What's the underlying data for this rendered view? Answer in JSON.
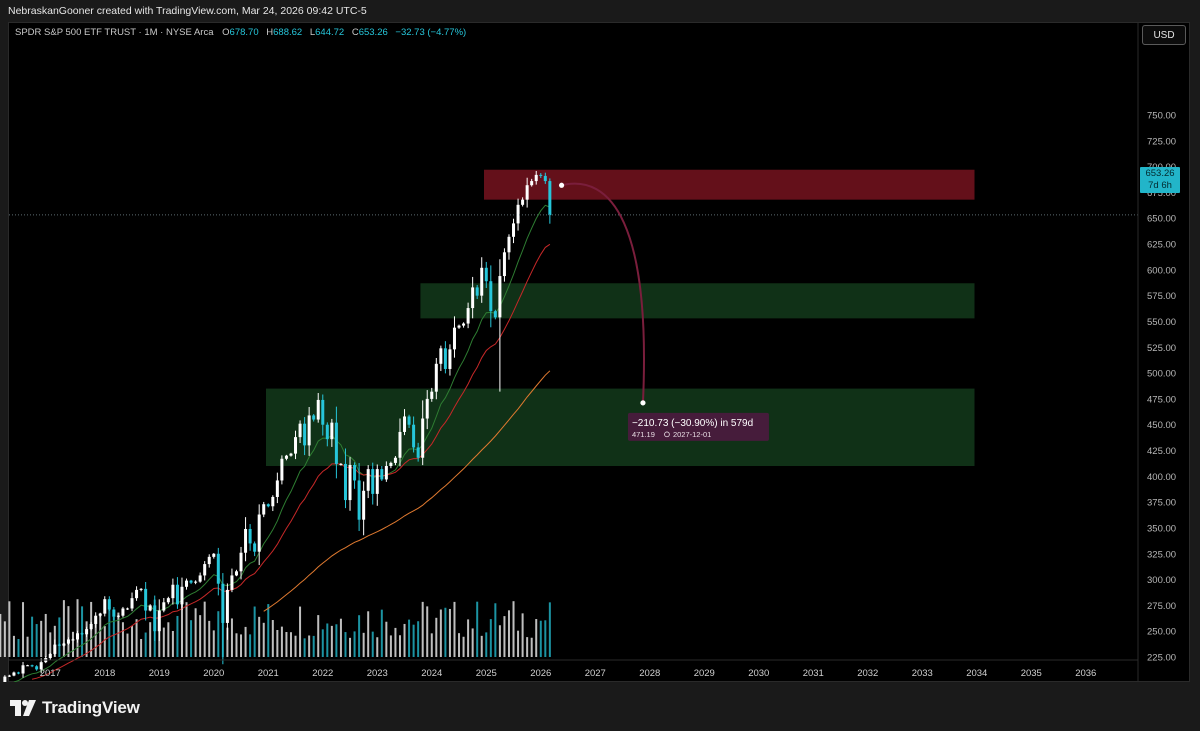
{
  "header": {
    "attribution": "NebraskanGooner created with TradingView.com, Mar 24, 2026 09:42 UTC-5"
  },
  "legend": {
    "symbol": "SPDR S&P 500 ETF TRUST · 1M · NYSE Arca",
    "open_label": "O",
    "open": "678.70",
    "high_label": "H",
    "high": "688.62",
    "low_label": "L",
    "low": "644.72",
    "close_label": "C",
    "close": "653.26",
    "change": "−32.73 (−4.77%)"
  },
  "currency_button": "USD",
  "price_badge": {
    "price": "653.26",
    "countdown": "7d 6h"
  },
  "brand": "TradingView",
  "colors": {
    "up": "#ffffff",
    "down": "#26c6da",
    "resistance_zone": "#7a1420",
    "support_zone": "#1e5a2a",
    "projection": "#7a1e3c",
    "ema_short": "#2e7d32",
    "ema_mid": "#c62828",
    "sma_long": "#e07a30"
  },
  "chart_data": {
    "type": "candlestick",
    "interval": "1M",
    "ylim": [
      220,
      790
    ],
    "y_ticks": [
      225,
      250,
      275,
      300,
      325,
      350,
      375,
      400,
      425,
      450,
      475,
      500,
      525,
      550,
      575,
      600,
      625,
      650,
      675,
      700,
      725,
      750
    ],
    "x_ticks": [
      "2017",
      "2018",
      "2019",
      "2020",
      "2021",
      "2022",
      "2023",
      "2024",
      "2025",
      "2026",
      "2027",
      "2028",
      "2029",
      "2030",
      "2031",
      "2032",
      "2033",
      "2034",
      "2035",
      "2036"
    ],
    "last_price": 653.26,
    "closes": {
      "start": "2016-01",
      "values": [
        194,
        198,
        206,
        207,
        210,
        209,
        217,
        217,
        216,
        213,
        220,
        224,
        228,
        237,
        236,
        238,
        242,
        242,
        248,
        247,
        252,
        257,
        265,
        267,
        281,
        271,
        264,
        265,
        272,
        272,
        282,
        290,
        291,
        270,
        275,
        250,
        270,
        278,
        282,
        295,
        276,
        293,
        299,
        297,
        298,
        304,
        315,
        322,
        325,
        296,
        258,
        290,
        304,
        308,
        326,
        349,
        335,
        327,
        363,
        373,
        371,
        380,
        396,
        417,
        420,
        422,
        438,
        451,
        430,
        459,
        455,
        474,
        450,
        436,
        452,
        412,
        412,
        377,
        411,
        396,
        358,
        386,
        407,
        383,
        407,
        397,
        410,
        413,
        418,
        443,
        458,
        450,
        428,
        418,
        456,
        475,
        482,
        509,
        524,
        504,
        523,
        544,
        546,
        548,
        563,
        583,
        575,
        602,
        589,
        560,
        554,
        594,
        617,
        632,
        645,
        663,
        668,
        682,
        686,
        692,
        691,
        686,
        653
      ]
    },
    "zones": [
      {
        "name": "resistance",
        "price_low": 668,
        "price_high": 697,
        "from": "2025-01",
        "to": "2034-01"
      },
      {
        "name": "support",
        "price_low": 553,
        "price_high": 587,
        "from": "2023-11",
        "to": "2034-01"
      },
      {
        "name": "support",
        "price_low": 410,
        "price_high": 485,
        "from": "2021-01",
        "to": "2034-01"
      }
    ],
    "projection": {
      "from_price": 681.92,
      "to_price": 471.19,
      "to_date": "2027-12-01"
    },
    "projection_label": {
      "change": "−210.73 (−30.90%) in 579d",
      "target": "471.19",
      "date": "2027-12-01"
    }
  }
}
